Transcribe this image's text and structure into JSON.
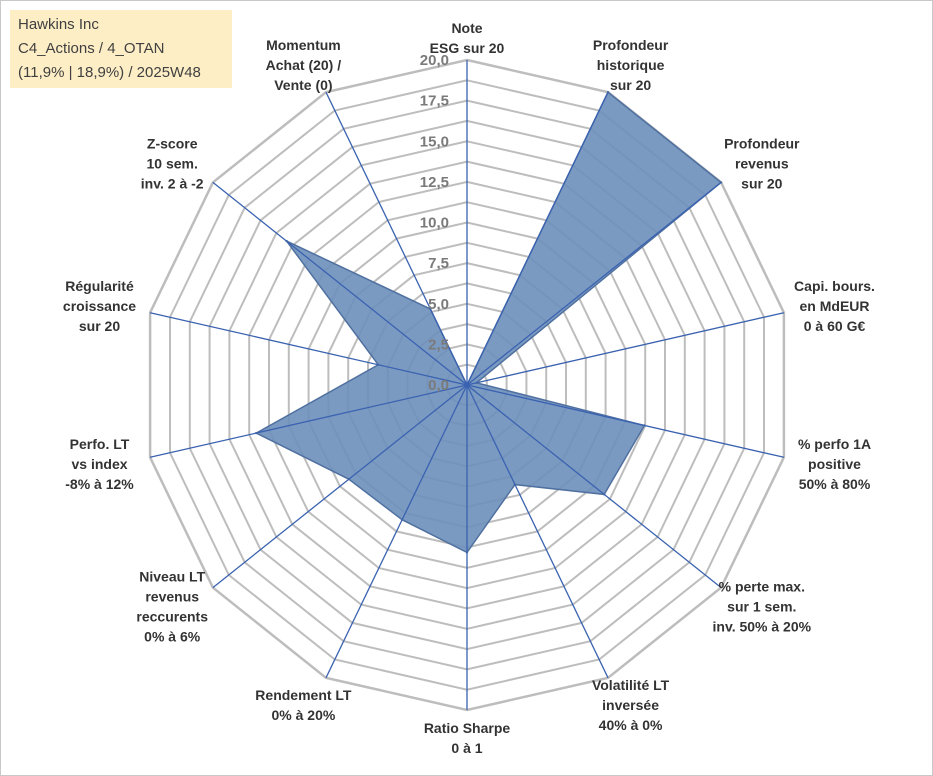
{
  "header": {
    "company": "Hawkins Inc",
    "portfolio": "C4_Actions / 4_OTAN",
    "performance": "(11,9% | 18,9%) / 2025W48"
  },
  "chart_data": {
    "type": "radar",
    "title": "",
    "rlim": [
      0,
      20
    ],
    "tick_values": [
      0,
      2.5,
      5,
      7.5,
      10,
      12.5,
      15,
      17.5,
      20
    ],
    "tick_labels": [
      "0,0",
      "2,5",
      "5,0",
      "7,5",
      "10,0",
      "12,5",
      "15,0",
      "17,5",
      "20,0"
    ],
    "categories": [
      [
        "Note",
        "ESG sur 20"
      ],
      [
        "Profondeur",
        "historique",
        "sur 20"
      ],
      [
        "Profondeur",
        "revenus",
        "sur 20"
      ],
      [
        "Capi. bours.",
        "en MdEUR",
        "0 à 60 G€"
      ],
      [
        "% perfo 1A",
        "positive",
        "50% à 80%"
      ],
      [
        "% perte max.",
        "sur 1 sem.",
        "inv. 50% à 20%"
      ],
      [
        "Volatilité LT",
        "inversée",
        "40% à 0%"
      ],
      [
        "Ratio Sharpe",
        "0 à 1"
      ],
      [
        "Rendement LT",
        "0% à 20%"
      ],
      [
        "Niveau LT",
        "revenus",
        "reccurents",
        "0% à 6%"
      ],
      [
        "Perfo. LT",
        "vs index",
        "-8% à 12%"
      ],
      [
        "Régularité",
        "croissance",
        "sur 20"
      ],
      [
        "Z-score",
        "10 sem.",
        "inv. 2 à -2"
      ],
      [
        "Momentum",
        "Achat (20) /",
        "Vente (0)"
      ]
    ],
    "series": [
      {
        "name": "Hawkins Inc",
        "values": [
          0,
          20,
          20,
          0.6,
          11.2,
          10.8,
          6.8,
          10.3,
          9.2,
          9.3,
          13.3,
          5.6,
          14.2,
          5.2
        ]
      }
    ],
    "colors": {
      "fill": "#6d8fbb",
      "stroke": "#5071a0",
      "spokes": "#3a62b0",
      "grid": "#bdbdbd"
    }
  }
}
